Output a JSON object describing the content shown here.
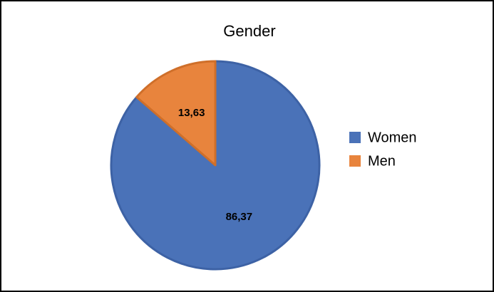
{
  "chart_data": {
    "type": "pie",
    "title": "Gender",
    "categories": [
      "Women",
      "Men"
    ],
    "values": [
      86.37,
      13.63
    ],
    "value_labels": [
      "86,37",
      "13,63"
    ],
    "colors": [
      "#4a72b8",
      "#e8843d"
    ],
    "legend": "right"
  }
}
